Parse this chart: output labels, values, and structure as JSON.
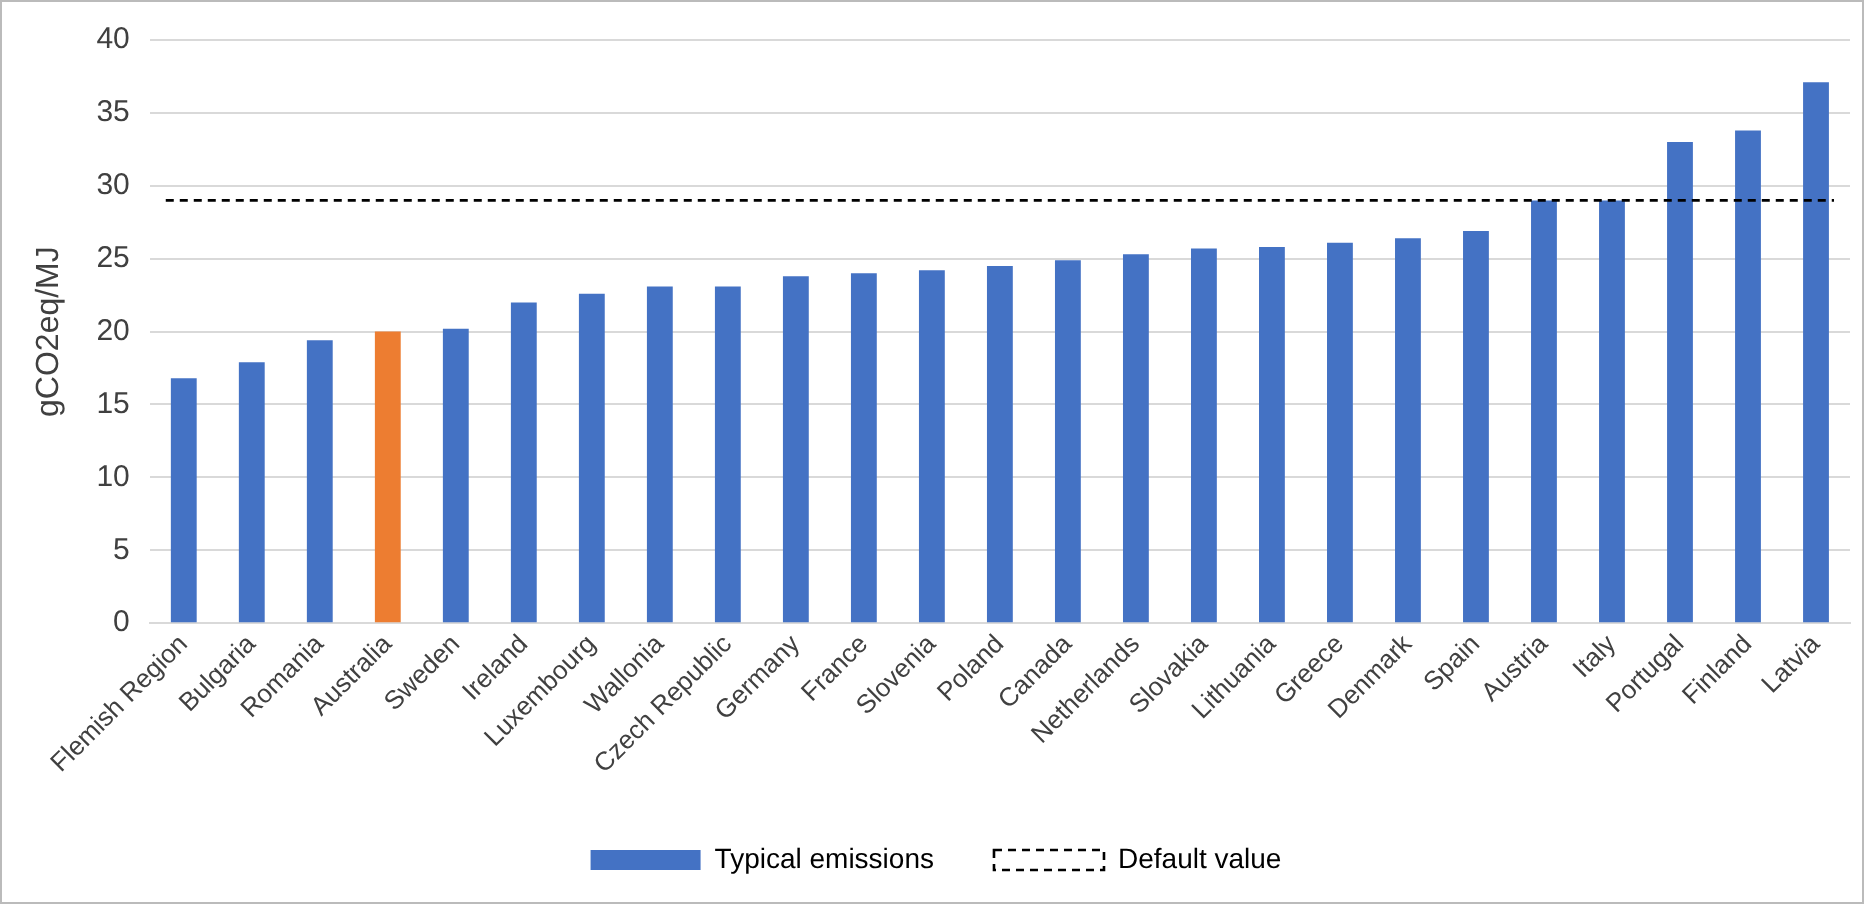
{
  "chart_data": {
    "type": "bar",
    "ylabel": "gCO2eq/MJ",
    "categories": [
      "Flemish Region",
      "Bulgaria",
      "Romania",
      "Australia",
      "Sweden",
      "Ireland",
      "Luxembourg",
      "Wallonia",
      "Czech Republic",
      "Germany",
      "France",
      "Slovenia",
      "Poland",
      "Canada",
      "Netherlands",
      "Slovakia",
      "Lithuania",
      "Greece",
      "Denmark",
      "Spain",
      "Austria",
      "Italy",
      "Portugal",
      "Finland",
      "Latvia"
    ],
    "series": [
      {
        "name": "Typical emissions",
        "color": "#4472c4",
        "colors": [
          "#4472c4",
          "#4472c4",
          "#4472c4",
          "#ed7d31",
          "#4472c4",
          "#4472c4",
          "#4472c4",
          "#4472c4",
          "#4472c4",
          "#4472c4",
          "#4472c4",
          "#4472c4",
          "#4472c4",
          "#4472c4",
          "#4472c4",
          "#4472c4",
          "#4472c4",
          "#4472c4",
          "#4472c4",
          "#4472c4",
          "#4472c4",
          "#4472c4",
          "#4472c4",
          "#4472c4",
          "#4472c4"
        ],
        "values": [
          16.8,
          17.9,
          19.4,
          20.0,
          20.2,
          22.0,
          22.6,
          23.1,
          23.1,
          23.8,
          24.0,
          24.2,
          24.5,
          24.9,
          25.3,
          25.7,
          25.8,
          26.1,
          26.4,
          26.9,
          29.0,
          29.0,
          33.0,
          33.8,
          37.1
        ]
      }
    ],
    "ylim": [
      0,
      40
    ],
    "yticks": [
      0,
      5,
      10,
      15,
      20,
      25,
      30,
      35,
      40
    ],
    "grid": "y",
    "legend": "bottom",
    "ref_lines": [
      {
        "axis": "y",
        "value": 29,
        "label": "Default value",
        "color": "#000000",
        "line_style": "dashed"
      }
    ]
  }
}
